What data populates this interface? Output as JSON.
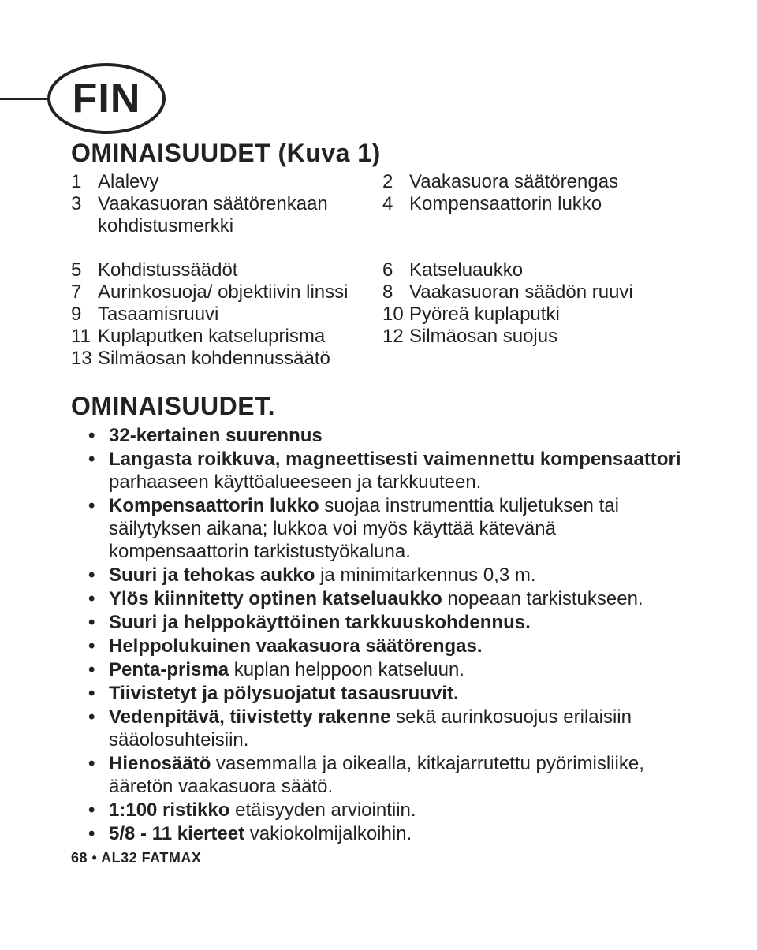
{
  "badge": {
    "label": "FIN"
  },
  "section1": {
    "title": "OMINAISUUDET (Kuva 1)",
    "parts": [
      {
        "n": "1",
        "t": "Alalevy"
      },
      {
        "n": "2",
        "t": "Vaakasuora säätörengas"
      },
      {
        "n": "3",
        "t": "Vaakasuoran säätörenkaan kohdistusmerkki"
      },
      {
        "n": "4",
        "t": "Kompensaattorin lukko"
      },
      {
        "n": "5",
        "t": "Kohdistussäädöt"
      },
      {
        "n": "6",
        "t": "Katseluaukko"
      },
      {
        "n": "7",
        "t": "Aurinkosuoja/ objektiivin linssi"
      },
      {
        "n": "8",
        "t": "Vaakasuoran säädön ruuvi"
      },
      {
        "n": "9",
        "t": "Tasaamisruuvi"
      },
      {
        "n": "10",
        "t": "Pyöreä kuplaputki"
      },
      {
        "n": "11",
        "t": "Kuplaputken katseluprisma"
      },
      {
        "n": "12",
        "t": "Silmäosan suojus"
      },
      {
        "n": "13",
        "t": "Silmäosan kohdennussäätö"
      }
    ],
    "layout_cells": [
      0,
      1,
      2,
      3,
      2,
      null,
      4,
      5,
      6,
      7,
      8,
      9,
      10,
      11,
      12,
      null
    ]
  },
  "section2": {
    "title": "OMINAISUUDET.",
    "features": [
      {
        "runs": [
          {
            "b": true,
            "t": "32-kertainen suurennus"
          }
        ]
      },
      {
        "runs": [
          {
            "b": true,
            "t": "Langasta roikkuva, magneettisesti vaimennettu kompensaattori"
          },
          {
            "b": false,
            "t": " parhaaseen käyttöalueeseen ja tarkkuuteen."
          }
        ]
      },
      {
        "runs": [
          {
            "b": true,
            "t": "Kompensaattorin lukko"
          },
          {
            "b": false,
            "t": " suojaa instrumenttia kuljetuksen tai säilytyksen aikana; lukkoa voi myös käyttää kätevänä kompensaattorin tarkistustyökaluna."
          }
        ]
      },
      {
        "runs": [
          {
            "b": true,
            "t": "Suuri ja tehokas aukko"
          },
          {
            "b": false,
            "t": " ja minimitarkennus 0,3 m."
          }
        ]
      },
      {
        "runs": [
          {
            "b": true,
            "t": "Ylös kiinnitetty optinen katseluaukko"
          },
          {
            "b": false,
            "t": " nopeaan tarkistukseen."
          }
        ]
      },
      {
        "runs": [
          {
            "b": true,
            "t": "Suuri ja helppokäyttöinen tarkkuuskohdennus."
          }
        ]
      },
      {
        "runs": [
          {
            "b": true,
            "t": "Helppolukuinen vaakasuora säätörengas."
          }
        ]
      },
      {
        "runs": [
          {
            "b": true,
            "t": "Penta-prisma"
          },
          {
            "b": false,
            "t": " kuplan helppoon katseluun."
          }
        ]
      },
      {
        "runs": [
          {
            "b": true,
            "t": "Tiivistetyt ja pölysuojatut tasausruuvit."
          }
        ]
      },
      {
        "runs": [
          {
            "b": true,
            "t": "Vedenpitävä, tiivistetty rakenne"
          },
          {
            "b": false,
            "t": " sekä aurinkosuojus erilaisiin sääolosuhteisiin."
          }
        ]
      },
      {
        "runs": [
          {
            "b": true,
            "t": "Hienosäätö"
          },
          {
            "b": false,
            "t": " vasemmalla ja oikealla, kitkajarrutettu pyörimisliike, ääretön vaakasuora säätö."
          }
        ]
      },
      {
        "runs": [
          {
            "b": true,
            "t": "1:100 ristikko"
          },
          {
            "b": false,
            "t": " etäisyyden arviointiin."
          }
        ]
      },
      {
        "runs": [
          {
            "b": true,
            "t": "5/8 - 11 kierteet"
          },
          {
            "b": false,
            "t": " vakiokolmijalkoihin."
          }
        ]
      }
    ]
  },
  "footer": "68 • AL32 FATMAX"
}
